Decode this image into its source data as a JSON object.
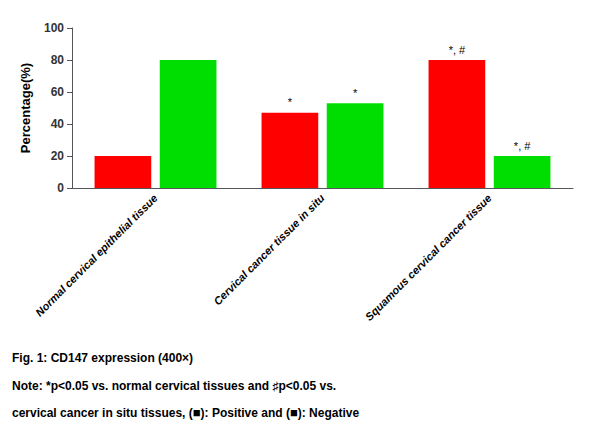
{
  "chart_data": {
    "type": "bar",
    "categories": [
      "Normal cervical epithelial tissue",
      "Cervical cancer tissue in situ",
      "Squamous cervical cancer tissue"
    ],
    "series": [
      {
        "name": "Positive",
        "color": "#ff0000",
        "values": [
          20,
          47,
          80
        ]
      },
      {
        "name": "Negative",
        "color": "#00dd00",
        "values": [
          80,
          53,
          20
        ]
      }
    ],
    "ylabel": "Percentage(%)",
    "ylim": [
      0,
      100
    ],
    "yticks": [
      0,
      20,
      40,
      60,
      80,
      100
    ],
    "grid": false,
    "annotations": [
      {
        "text": "*",
        "series": "Positive",
        "category": "Cervical cancer tissue in situ"
      },
      {
        "text": "*, #",
        "series": "Positive",
        "category": "Squamous cervical cancer tissue"
      },
      {
        "text": "*",
        "series": "Negative",
        "category": "Cervical cancer tissue in situ"
      },
      {
        "text": "*, #",
        "series": "Negative",
        "category": "Squamous cervical cancer tissue"
      }
    ],
    "caption": "Fig. 1: CD147 expression (400×)",
    "notes": [
      "Note: *p<0.05 vs. normal cervical tissues and ♯p<0.05 vs.",
      "cervical cancer in situ tissues, (■): Positive and (■): Negative"
    ]
  }
}
